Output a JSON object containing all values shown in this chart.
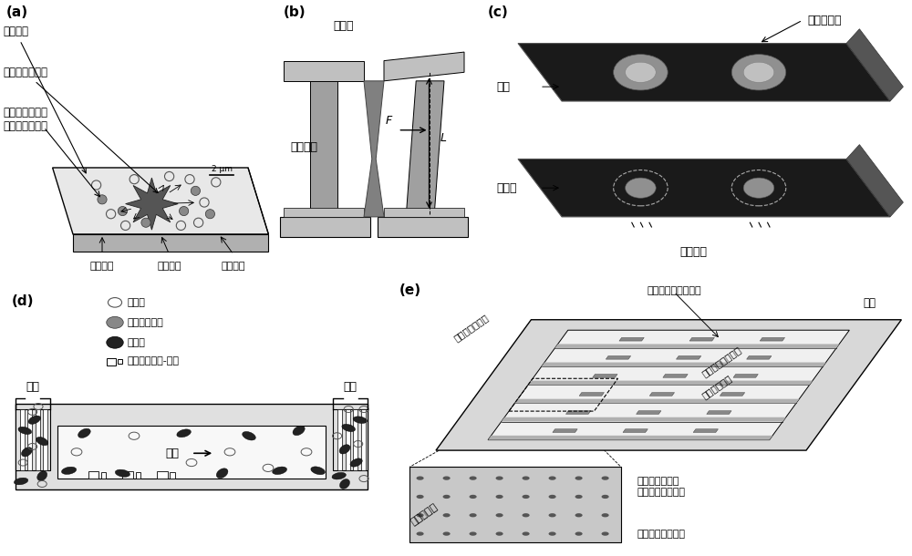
{
  "bg_color": "#ffffff",
  "panel_a": {
    "label": "(a)",
    "scale": "2 μm",
    "t1": "柔性凝胶",
    "t2": "单个血小板收缩",
    "t3": "珠子的位移用于\n检测凝胶的变形",
    "t4": "刚性基底",
    "t5": "最终位置",
    "t6": "初始位置"
  },
  "panel_b": {
    "label": "(b)",
    "t1": "悬臂梁",
    "t2": "腧原蛋白",
    "t3": "F",
    "t4": "L"
  },
  "panel_c": {
    "label": "(c)",
    "t1": "纤维蛋白原",
    "t2": "基底",
    "t3": "血小板",
    "t4": "微点位移"
  },
  "panel_d": {
    "label": "(d)",
    "legend1": "血小板",
    "legend2": "粘附的血小板",
    "legend3": "红细胞",
    "legend4": "力传感器（块-柱）",
    "inlet": "入口",
    "outlet": "出口",
    "flow": "血流"
  },
  "panel_e": {
    "label": "(e)",
    "t1": "腧原蛋白微组织阵列",
    "t2": "流出",
    "t3": "顶层微流控通道",
    "t4": "中间层微组织阵列",
    "t5": "底层可伸缩膜",
    "t6": "腧原蛋白微组织\n捕获流动的血小板",
    "t7": "血小板流入",
    "t8": "微柱作为力传感器"
  }
}
